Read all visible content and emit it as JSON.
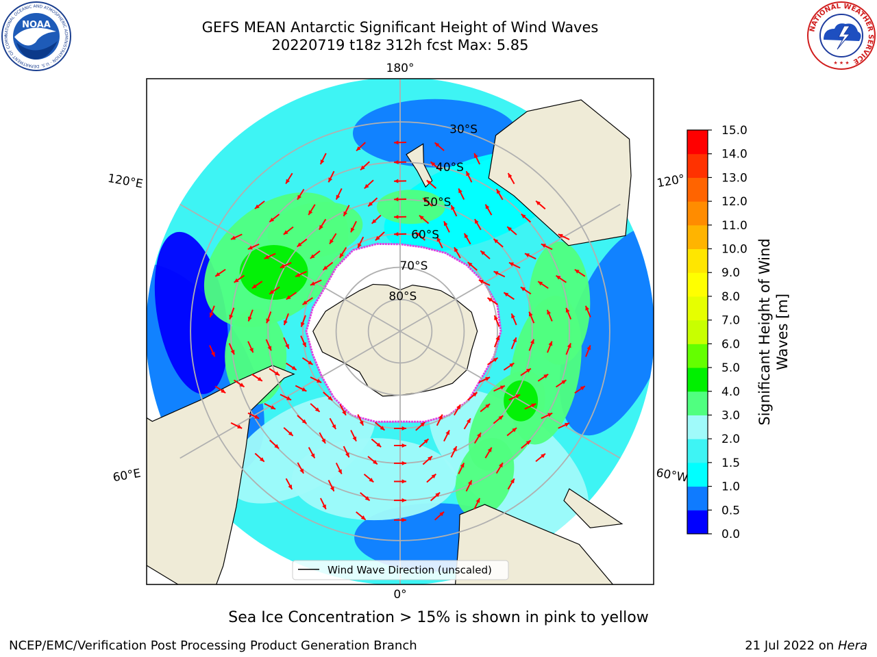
{
  "header": {
    "title_line1": "GEFS MEAN Antarctic Significant Height of Wind Waves",
    "title_line2": "20220719 t18z 312h fcst   Max: 5.85"
  },
  "map": {
    "projection": "south-polar-stereographic",
    "longitude_labels": [
      {
        "lon": 180,
        "text": "180°"
      },
      {
        "lon": 0,
        "text": "0°"
      },
      {
        "lon": 120,
        "text": "120°E"
      },
      {
        "lon": 60,
        "text": "60°E"
      },
      {
        "lon": -120,
        "text": "120°"
      },
      {
        "lon": -60,
        "text": "60°W"
      }
    ],
    "latitude_labels": [
      {
        "lat": -30,
        "text": "30°S"
      },
      {
        "lat": -40,
        "text": "40°S"
      },
      {
        "lat": -50,
        "text": "50°S"
      },
      {
        "lat": -60,
        "text": "60°S"
      },
      {
        "lat": -70,
        "text": "70°S"
      },
      {
        "lat": -80,
        "text": "80°S"
      }
    ],
    "legend_label": "Wind Wave Direction (unscaled)",
    "colors": {
      "land": "#efebd7",
      "sea_ice": "#ffffff",
      "ice_edge": "#e040e0",
      "arrow": "#ff0000",
      "graticule": "#b0b0b0"
    }
  },
  "colorbar": {
    "label": "Significant Height of Wind Waves [m]",
    "ticks": [
      "15.0",
      "14.0",
      "13.0",
      "12.0",
      "11.0",
      "10.0",
      "9.0",
      "8.0",
      "7.0",
      "6.0",
      "5.0",
      "4.0",
      "3.0",
      "2.0",
      "1.5",
      "1.0",
      "0.5",
      "0.0"
    ],
    "bands": [
      {
        "range": "0.0-0.5",
        "color": "#0000ff"
      },
      {
        "range": "0.5-1.0",
        "color": "#0f7bff"
      },
      {
        "range": "1.0-1.5",
        "color": "#00ffff"
      },
      {
        "range": "1.5-2.0",
        "color": "#3ef4f4"
      },
      {
        "range": "2.0-3.0",
        "color": "#a0fafa"
      },
      {
        "range": "3.0-4.0",
        "color": "#50ff80"
      },
      {
        "range": "4.0-5.0",
        "color": "#00f000"
      },
      {
        "range": "5.0-6.0",
        "color": "#64ff00"
      },
      {
        "range": "6.0-7.0",
        "color": "#c8ff00"
      },
      {
        "range": "7.0-8.0",
        "color": "#e6ff00"
      },
      {
        "range": "8.0-9.0",
        "color": "#ffff00"
      },
      {
        "range": "9.0-10.0",
        "color": "#ffe600"
      },
      {
        "range": "10.0-11.0",
        "color": "#ffb400"
      },
      {
        "range": "11.0-12.0",
        "color": "#ff8c00"
      },
      {
        "range": "12.0-13.0",
        "color": "#ff6400"
      },
      {
        "range": "13.0-14.0",
        "color": "#ff3200"
      },
      {
        "range": "14.0-15.0",
        "color": "#ff0000"
      }
    ]
  },
  "footer": {
    "caption": "Sea Ice Concentration > 15% is shown in pink to yellow",
    "credit": "NCEP/EMC/Verification Post Processing Product Generation Branch",
    "date": "21 Jul 2022 on",
    "host": "Hera"
  },
  "logos": {
    "noaa": "NOAA",
    "noaa_ring": "NATIONAL OCEANIC AND ATMOSPHERIC ADMINISTRATION · U.S. DEPARTMENT OF COMMERCE",
    "nws_ring": "NATIONAL WEATHER SERVICE"
  }
}
